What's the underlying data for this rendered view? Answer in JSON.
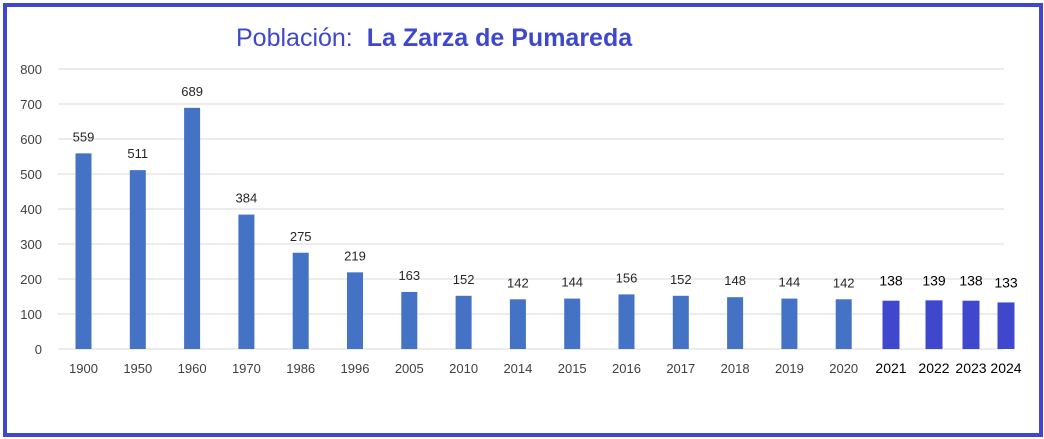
{
  "title": {
    "prefix": "Población:",
    "place": "La Zarza de Pumareda"
  },
  "chart_data": {
    "type": "bar",
    "title": "Población:  La Zarza de Pumareda",
    "xlabel": "",
    "ylabel": "",
    "ylim": [
      0,
      800
    ],
    "yticks": [
      0,
      100,
      200,
      300,
      400,
      500,
      600,
      700,
      800
    ],
    "grid": true,
    "legend": "none",
    "categories": [
      "1900",
      "1950",
      "1960",
      "1970",
      "1986",
      "1996",
      "2005",
      "2010",
      "2014",
      "2015",
      "2016",
      "2017",
      "2018",
      "2019",
      "2020",
      "2021",
      "2022",
      "2023",
      "2024"
    ],
    "values": [
      559,
      511,
      689,
      384,
      275,
      219,
      163,
      152,
      142,
      144,
      156,
      152,
      148,
      144,
      142,
      138,
      139,
      138,
      133
    ],
    "colors": {
      "bar": "#4472c4",
      "recent_bar": "#3f48cc",
      "grid": "#d9d9d9",
      "frame": "#3f48cc"
    },
    "recent_from_index": 15
  }
}
